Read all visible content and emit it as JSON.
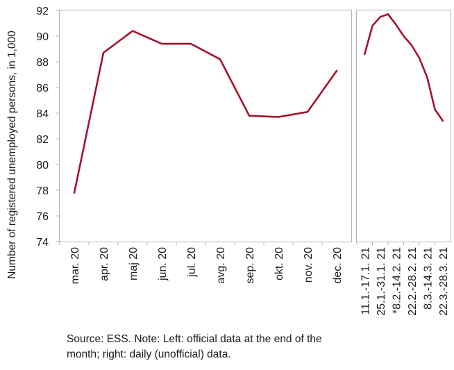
{
  "chart_data": [
    {
      "type": "line",
      "categories": [
        "mar. 20",
        "apr. 20",
        "maj 20",
        "jun. 20",
        "jul. 20",
        "avg. 20",
        "sep. 20",
        "okt. 20",
        "nov. 20",
        "dec. 20"
      ],
      "series": [
        {
          "values": [
            77.8,
            88.7,
            90.4,
            89.4,
            89.4,
            88.2,
            83.8,
            83.7,
            84.1,
            87.3
          ]
        }
      ],
      "ylabel": "Number of registered unemployed persons, in 1,000",
      "ylim": [
        74,
        92
      ],
      "yticks": [
        74,
        76,
        78,
        80,
        82,
        84,
        86,
        88,
        90,
        92
      ],
      "color": "#a4112e",
      "grid": false
    },
    {
      "type": "line",
      "categories": [
        "11.1.-17.1. 21",
        "25.1.-31.1. 21",
        "*8.2.-14.2. 21",
        "22.2.-28.2. 21",
        "8.3.-14.3. 21",
        "22.3.-28.3. 21"
      ],
      "x": [
        0,
        0.5,
        1,
        1.5,
        2,
        2.5,
        3,
        3.5,
        4,
        4.5,
        5
      ],
      "series": [
        {
          "values": [
            88.6,
            90.8,
            91.5,
            91.7,
            90.9,
            90.0,
            89.3,
            88.3,
            86.8,
            84.3,
            83.4
          ]
        }
      ],
      "ylim": [
        74,
        92
      ],
      "color": "#a4112e",
      "grid": false
    }
  ],
  "note": "Source: ESS. Note: Left: official data at the end of the month; right: daily (unofficial) data."
}
